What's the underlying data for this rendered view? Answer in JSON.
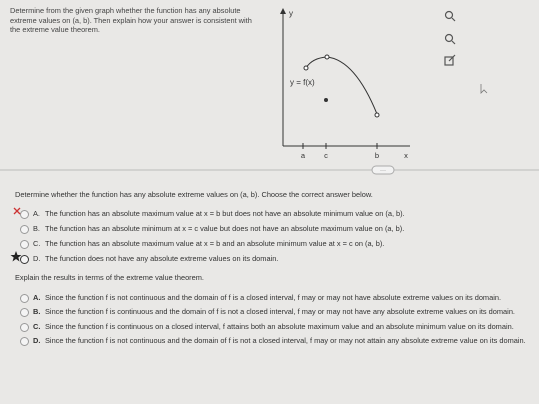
{
  "question": {
    "text": "Determine from the given graph whether the function has any absolute extreme values on (a, b). Then explain how your answer is consistent with the extreme value theorem."
  },
  "graph": {
    "y_label": "y",
    "function_label": "y = f(x)",
    "x_ticks": [
      "a",
      "c",
      "b"
    ],
    "x_label": "x"
  },
  "part1": {
    "prompt": "Determine whether the function has any absolute extreme values on (a, b). Choose the correct answer below.",
    "options": [
      {
        "letter": "A.",
        "text": "The function has an absolute maximum value at x = b but does not have an absolute minimum value on (a, b)."
      },
      {
        "letter": "B.",
        "text": "The function has an absolute minimum at x = c value but does not have an absolute maximum value on (a, b)."
      },
      {
        "letter": "C.",
        "text": "The function has an absolute maximum value at x = b and an absolute minimum value at x = c on (a, b)."
      },
      {
        "letter": "D.",
        "text": "The function does not have any absolute extreme values on its domain."
      }
    ]
  },
  "part2": {
    "prompt": "Explain the results in terms of the extreme value theorem.",
    "options": [
      {
        "letter": "A.",
        "text": "Since the function f is not continuous and the domain of f is a closed interval, f may or may not have absolute extreme values on its domain."
      },
      {
        "letter": "B.",
        "text": "Since the function f is continuous and the domain of f is not a closed interval, f may or may not have any absolute extreme values on its domain."
      },
      {
        "letter": "C.",
        "text": "Since the function f is continuous on a closed interval, f attains both an absolute maximum value and an absolute minimum value on its domain."
      },
      {
        "letter": "D.",
        "text": "Since the function f is not continuous and the domain of f is not a closed interval, f may or may not attain any absolute extreme value on its domain."
      }
    ]
  }
}
